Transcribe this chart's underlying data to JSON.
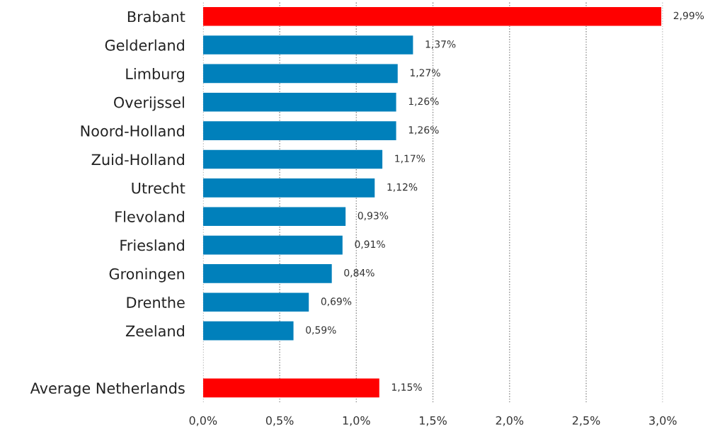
{
  "chart_data": {
    "type": "bar",
    "orientation": "horizontal",
    "categories": [
      "Brabant",
      "Gelderland",
      "Limburg",
      "Overijssel",
      "Noord-Holland",
      "Zuid-Holland",
      "Utrecht",
      "Flevoland",
      "Friesland",
      "Groningen",
      "Drenthe",
      "Zeeland",
      null,
      "Average Netherlands"
    ],
    "values": [
      2.99,
      1.37,
      1.27,
      1.26,
      1.26,
      1.17,
      1.12,
      0.93,
      0.91,
      0.84,
      0.69,
      0.59,
      null,
      1.15
    ],
    "value_labels": [
      "2,99%",
      "1,37%",
      "1,27%",
      "1,26%",
      "1,26%",
      "1,17%",
      "1,12%",
      "0,93%",
      "0,91%",
      "0,84%",
      "0,69%",
      "0,59%",
      null,
      "1,15%"
    ],
    "colors": [
      "#ff0000",
      "#0080bb",
      "#0080bb",
      "#0080bb",
      "#0080bb",
      "#0080bb",
      "#0080bb",
      "#0080bb",
      "#0080bb",
      "#0080bb",
      "#0080bb",
      "#0080bb",
      "#0080bb",
      "#ff0000"
    ],
    "xlim": [
      0,
      3.0
    ],
    "xticks": [
      {
        "value": 0,
        "label": "0,0%"
      },
      {
        "value": 0.5,
        "label": "0,5%"
      },
      {
        "value": 1.0,
        "label": "1,0%"
      },
      {
        "value": 1.5,
        "label": "1,5%"
      },
      {
        "value": 2.0,
        "label": "2,0%"
      },
      {
        "value": 2.5,
        "label": "2,5%"
      },
      {
        "value": 3.0,
        "label": "3,0%"
      }
    ],
    "grid": "x",
    "line_style": "dotted",
    "legend": false
  }
}
